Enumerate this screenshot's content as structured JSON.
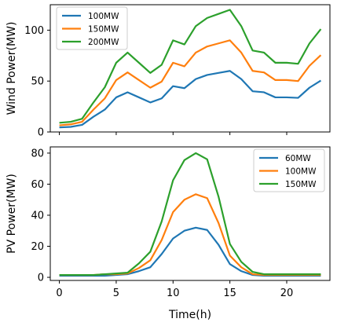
{
  "chart_data": [
    {
      "type": "line",
      "ylabel": "Wind Power(MW)",
      "xlabel": "",
      "x": [
        0,
        1,
        2,
        3,
        4,
        5,
        6,
        7,
        8,
        9,
        10,
        11,
        12,
        13,
        14,
        15,
        16,
        17,
        18,
        19,
        20,
        21,
        22,
        23
      ],
      "xlim": [
        -0.8,
        23.8
      ],
      "ylim": [
        0,
        125
      ],
      "xticks": [
        0,
        5,
        10,
        15,
        20
      ],
      "yticks": [
        0,
        50,
        100
      ],
      "legend_position": "top-left",
      "series": [
        {
          "name": "100MW",
          "color": "#1f77b4",
          "values": [
            4.5,
            5,
            7,
            15,
            22,
            34,
            39,
            34,
            29,
            33,
            45,
            43,
            52,
            56,
            58,
            60,
            52,
            40,
            39,
            34,
            34,
            33.5,
            43.5,
            50.5
          ]
        },
        {
          "name": "150MW",
          "color": "#ff7f0e",
          "values": [
            6.5,
            7.5,
            10,
            22,
            33,
            51,
            58.5,
            51,
            43.5,
            49.5,
            68,
            64.5,
            78,
            84,
            87,
            90,
            78,
            60,
            58.5,
            51,
            51,
            50,
            65,
            75.5
          ]
        },
        {
          "name": "200MW",
          "color": "#2ca02c",
          "values": [
            9,
            10,
            13,
            29,
            44,
            68,
            78,
            68,
            58,
            66,
            90,
            86,
            104,
            112,
            116,
            120,
            104,
            80,
            78,
            68,
            68,
            67,
            87,
            101
          ]
        }
      ]
    },
    {
      "type": "line",
      "ylabel": "PV Power(MW)",
      "xlabel": "Time(h)",
      "x": [
        0,
        1,
        2,
        3,
        4,
        5,
        6,
        7,
        8,
        9,
        10,
        11,
        12,
        13,
        14,
        15,
        16,
        17,
        18,
        19,
        20,
        21,
        22,
        23
      ],
      "xlim": [
        -0.8,
        23.8
      ],
      "ylim": [
        -2,
        84
      ],
      "xticks": [
        0,
        5,
        10,
        15,
        20
      ],
      "yticks": [
        0,
        20,
        40,
        60,
        80
      ],
      "legend_position": "top-right",
      "series": [
        {
          "name": "60MW",
          "color": "#1f77b4",
          "values": [
            1,
            1,
            1,
            1,
            1,
            1.5,
            2,
            4,
            6.5,
            15,
            25,
            30,
            32,
            30.5,
            21,
            8.5,
            4,
            1.5,
            1,
            1,
            1,
            1,
            1,
            1
          ]
        },
        {
          "name": "100MW",
          "color": "#ff7f0e",
          "values": [
            1.5,
            1.5,
            1.5,
            1.5,
            2,
            2,
            2.5,
            6,
            11,
            24,
            42,
            50,
            53.5,
            51,
            35,
            14,
            6.5,
            2,
            1.5,
            1.5,
            1.5,
            1.5,
            1.5,
            1.5
          ]
        },
        {
          "name": "150MW",
          "color": "#2ca02c",
          "values": [
            1.5,
            1.5,
            1.5,
            1.5,
            2,
            2.5,
            3,
            9,
            16.5,
            36,
            62.5,
            75.5,
            80,
            76,
            52,
            21.5,
            10,
            3.5,
            2,
            2,
            2,
            2,
            2,
            2
          ]
        }
      ]
    }
  ]
}
